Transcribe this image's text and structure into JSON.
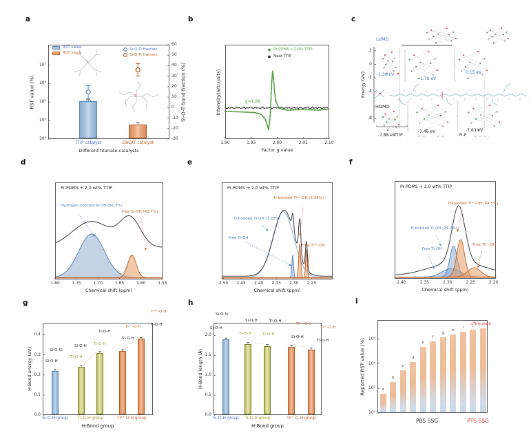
{
  "colors": {
    "blue_fill": "#aac7e2",
    "blue_edge": "#5b87ad",
    "orange_fill": "#eda97f",
    "orange_edge": "#b35c24",
    "olive_fill": "#dcdc8e",
    "olive_edge": "#7f7f2d",
    "blue_text": "#4472c4",
    "orange_text": "#c0632a",
    "olive_text": "#9a9a30",
    "label_blue": "#4f81bd",
    "green": "#4e9a3c",
    "red": "#e03030",
    "teal": "#8fb8c6",
    "grad_top": "#f0c2a0",
    "grad_bottom": "#c8d6e6"
  },
  "chart_data": [
    {
      "panel": "a",
      "type": "bar",
      "ylabel_left": "RST value (%)",
      "ylabel_right": "Si-O-Ti bond fraction (%)",
      "xlabel": "Different titanate catalysts",
      "yticks_left": [
        "10³",
        "10⁴",
        "10⁵",
        "10⁶",
        "10⁷"
      ],
      "yticks_left_exp": [
        3,
        4,
        5,
        6,
        7
      ],
      "ylim_left_exp": [
        3,
        8.1
      ],
      "yticks_right": [
        60,
        50,
        40,
        30,
        20,
        10,
        0,
        -10,
        -20,
        -30
      ],
      "ylim_right": [
        -30,
        60
      ],
      "legend": [
        {
          "label": "RST value",
          "marker": "swatch",
          "color": "blue"
        },
        {
          "label": "RST value",
          "marker": "swatch",
          "color": "orange"
        },
        {
          "label": "Si-O-Ti fraction",
          "marker": "circle",
          "color": "blue"
        },
        {
          "label": "Si-O-Ti fraction",
          "marker": "circle",
          "color": "orange"
        }
      ],
      "categories": [
        {
          "label": "TTIP catalyst",
          "color": "blue",
          "rst_value": 110000,
          "fraction": 15
        },
        {
          "label": "DBEAT catalyst",
          "color": "orange",
          "rst_value": 6000,
          "fraction": 36
        }
      ]
    },
    {
      "panel": "b",
      "type": "line",
      "xlabel": "Factor g value",
      "ylabel": "Intensity(arb.units)",
      "xticks": [
        "1.90",
        "1.95",
        "2.00",
        "2.05",
        "2.10"
      ],
      "xlim": [
        1.9,
        2.1
      ],
      "annotation": "g=1.99",
      "series": [
        {
          "name": "Pr-PDMS +2.0% TTIP",
          "color": "green",
          "points": [
            [
              1.9,
              -0.04
            ],
            [
              1.92,
              -0.05
            ],
            [
              1.94,
              -0.06
            ],
            [
              1.955,
              -0.07
            ],
            [
              1.965,
              -0.1
            ],
            [
              1.97,
              -0.13
            ],
            [
              1.976,
              -0.22
            ],
            [
              1.98,
              -0.36
            ],
            [
              1.9835,
              -0.52
            ],
            [
              1.986,
              -0.25
            ],
            [
              1.9875,
              0.1
            ],
            [
              1.989,
              0.62
            ],
            [
              1.991,
              1.0
            ],
            [
              1.9925,
              0.88
            ],
            [
              1.995,
              0.45
            ],
            [
              1.998,
              0.2
            ],
            [
              2.002,
              0.08
            ],
            [
              2.008,
              0.02
            ],
            [
              2.02,
              -0.01
            ],
            [
              2.05,
              0.01
            ],
            [
              2.08,
              -0.01
            ],
            [
              2.1,
              0.02
            ]
          ]
        },
        {
          "name": "Neat TTIP",
          "color": "black",
          "points": [
            [
              1.9,
              0.05
            ],
            [
              2.1,
              0.05
            ]
          ]
        }
      ]
    },
    {
      "panel": "c",
      "type": "energy-diagram",
      "ylabel": "Energy (eV)",
      "yticks": [
        2,
        0,
        -2,
        -4,
        -8
      ],
      "ylim": [
        -8.6,
        2.6
      ],
      "lumo_label": "LUMO",
      "homo_label": "HOMO",
      "levels": [
        {
          "lumo": "-1.36 eV",
          "homo": "-7.88 eV",
          "x_label": "TTIP"
        },
        {
          "lumo": "-1.78 eV",
          "homo": "-7.46 eV",
          "x_label": ""
        },
        {
          "lumo": "0.15 eV",
          "homo": "-7.63 eV",
          "x_label": "Pr-P"
        }
      ]
    },
    {
      "panel": "d",
      "type": "area",
      "title": "Pr-PDMS + 2.0 wt% TTIP",
      "xlabel": "Chemical shift (ppm)",
      "xticks": [
        "1.80",
        "1.75",
        "1.70",
        "1.65",
        "1.60",
        "1.55"
      ],
      "xlim": [
        1.8,
        1.55
      ],
      "components": [
        {
          "name": "hydrogen-bonded-si-oh",
          "color": "blue",
          "fill": true,
          "center": 1.715,
          "width": 0.03,
          "amp": 0.47
        },
        {
          "name": "free-si-oh",
          "color": "orange",
          "fill": true,
          "center": 1.621,
          "width": 0.01,
          "amp": 0.24
        }
      ],
      "envelope": {
        "base": 0.33,
        "humps": [
          {
            "center": 1.715,
            "width": 0.045,
            "amp": 0.28
          },
          {
            "center": 1.625,
            "width": 0.024,
            "amp": 0.3
          }
        ]
      },
      "annotations": [
        {
          "text": "Hydrogen bonded Si-OH (56.3%)",
          "color": "blue",
          "tx": 0.05,
          "ty": 0.23,
          "sx": 0.22,
          "sy": 0.33,
          "ax": 0.37,
          "ay": 0.56
        },
        {
          "text": "Free Si-OH (43.7%)",
          "color": "orange",
          "tx": 0.62,
          "ty": 0.29,
          "sx": 0.8,
          "sy": 0.36,
          "ax": 0.845,
          "ay": 0.7
        }
      ]
    },
    {
      "panel": "e",
      "type": "area",
      "title": "Pr-PDMS + 2.0 wt% TTIP",
      "xlabel": "Chemical shift (ppm)",
      "xticks": [
        "2.50",
        "2.45",
        "2.40",
        "2.35",
        "2.30",
        "2.25"
      ],
      "xlim": [
        2.505,
        2.19
      ],
      "components": [
        {
          "name": "h-bonded-ti-oh-broad",
          "color": "lightblue",
          "fill": false,
          "center": 2.33,
          "width": 0.03,
          "amp": 0.71
        },
        {
          "name": "free-ti-oh",
          "color": "blue",
          "fill": true,
          "center": 2.3035,
          "width": 0.0024,
          "amp": 0.24
        },
        {
          "name": "h-bonded-ti4-oh",
          "color": "orange",
          "fill": true,
          "center": 2.2835,
          "width": 0.0028,
          "amp": 0.36
        },
        {
          "name": "free-ti4-oh",
          "color": "orange",
          "fill": true,
          "center": 2.2645,
          "width": 0.0024,
          "amp": 0.3
        }
      ],
      "envelope": {
        "base": 0.02,
        "humps": [
          {
            "center": 2.328,
            "width": 0.03,
            "amp": 0.71
          },
          {
            "center": 2.303,
            "width": 0.0028,
            "amp": 0.17
          },
          {
            "center": 2.2835,
            "width": 0.0032,
            "amp": 0.38
          },
          {
            "center": 2.2645,
            "width": 0.0028,
            "amp": 0.3
          }
        ]
      },
      "annotations": [
        {
          "text": "H-bonded Ti⁴⁺-OH (3.36%)",
          "color": "orange",
          "tx": 0.47,
          "ty": 0.15,
          "sx": 0.73,
          "sy": 0.26,
          "ax": 0.705,
          "ay": 0.55
        },
        {
          "text": "H-bonded Ti-OH (1.23%)",
          "color": "blue",
          "tx": 0.11,
          "ty": 0.36,
          "sx": 0.36,
          "sy": 0.44,
          "ax": 0.42,
          "ay": 0.5
        },
        {
          "text": "Free Ti-OH",
          "color": "blue",
          "tx": 0.06,
          "ty": 0.56,
          "sx": 0.22,
          "sy": 0.62,
          "ax": 0.63,
          "ay": 0.86
        },
        {
          "text": "Free Ti⁴⁺-OH",
          "color": "orange",
          "tx": 0.72,
          "ty": 0.64,
          "sx": 0.8,
          "sy": 0.72,
          "ax": 0.77,
          "ay": 0.87
        }
      ]
    },
    {
      "panel": "f",
      "type": "area",
      "title": "Pr-PDMS + 2.0 wt% TTIP",
      "xlabel": "Chemical shift (ppm)",
      "xticks": [
        "2.40",
        "2.35",
        "2.30",
        "2.25",
        "2.20"
      ],
      "xlim": [
        2.415,
        2.195
      ],
      "components": [
        {
          "name": "free-ti-oh-base",
          "color": "blue",
          "fill": true,
          "center": 2.292,
          "width": 0.02,
          "amp": 0.09
        },
        {
          "name": "h-bonded-ti-oh",
          "color": "blue",
          "fill": true,
          "center": 2.287,
          "width": 0.008,
          "amp": 0.33
        },
        {
          "name": "h-bonded-ti4-oh",
          "color": "orange",
          "fill": true,
          "center": 2.2715,
          "width": 0.0085,
          "amp": 0.4
        },
        {
          "name": "free-ti4-oh-broad",
          "color": "orange",
          "fill": true,
          "center": 2.242,
          "width": 0.014,
          "amp": 0.1
        }
      ],
      "envelope": {
        "base": 0.015,
        "humps": [
          {
            "center": 2.276,
            "width": 0.014,
            "amp": 0.6
          },
          {
            "center": 2.276,
            "width": 0.06,
            "amp": 0.15
          }
        ]
      },
      "annotations": [
        {
          "text": "H-bonded Ti⁴⁺-OH (64.5%)",
          "color": "orange",
          "tx": 0.53,
          "ty": 0.22,
          "sx": 0.67,
          "sy": 0.3,
          "ax": 0.62,
          "ay": 0.52
        },
        {
          "text": "H-bonded Ti-OH (29.2%)",
          "color": "blue",
          "tx": 0.16,
          "ty": 0.47,
          "sx": 0.41,
          "sy": 0.55,
          "ax": 0.46,
          "ay": 0.67
        },
        {
          "text": "Free Ti-OH",
          "color": "blue",
          "tx": 0.27,
          "ty": 0.68,
          "sx": 0.33,
          "sy": 0.75,
          "ax": 0.39,
          "ay": 0.9
        },
        {
          "text": "Free Ti⁴⁺-OH",
          "color": "orange",
          "tx": 0.77,
          "ty": 0.64,
          "sx": 0.86,
          "sy": 0.72,
          "ax": 0.82,
          "ay": 0.89
        }
      ]
    },
    {
      "panel": "g",
      "type": "bar",
      "ylabel": "H-Bond energy (eV)",
      "xlabel": "H-Bond group",
      "yticks": [
        "0.0",
        "0.1",
        "0.2",
        "0.3",
        "0.4"
      ],
      "ylim": [
        0,
        0.46
      ],
      "groups": [
        {
          "label": "Si-O-H group",
          "color": "blue"
        },
        {
          "label": "Ti-O-H group",
          "color": "olive"
        },
        {
          "label": "Ti⁴⁺-O-H group",
          "color": "orange"
        }
      ],
      "bars": [
        {
          "value": 0.22,
          "color": "blue",
          "labels": [
            {
              "text": "Si-O-Si",
              "color": "black"
            },
            {
              "text": "Si-O-H",
              "color": "black"
            }
          ]
        },
        {
          "value": 0.24,
          "color": "olive",
          "labels": [
            {
              "text": "Si-O-H",
              "color": "black"
            },
            {
              "text": "Ti-O-H",
              "color": "olive"
            }
          ]
        },
        {
          "value": 0.31,
          "color": "olive",
          "labels": [
            {
              "text": "Ti-O-H",
              "color": "black"
            },
            {
              "text": "Ti-O-H",
              "color": "olive"
            }
          ]
        },
        {
          "value": 0.32,
          "color": "orange",
          "labels": [
            {
              "text": "Ti⁴⁺-O-H",
              "color": "orange"
            },
            {
              "text": "Si-O-H",
              "color": "black"
            }
          ]
        },
        {
          "value": 0.38,
          "color": "orange",
          "labels": [
            {
              "text": "Ti⁴⁺-O-H",
              "color": "orange"
            },
            {
              "text": "Ti-O-H",
              "color": "black"
            }
          ]
        }
      ]
    },
    {
      "panel": "h",
      "type": "bar",
      "ylabel": "H-Bond length (Å)",
      "xlabel": "H-Bond group",
      "yticks": [
        "0.0",
        "0.5",
        "1.0",
        "1.5",
        "2.0"
      ],
      "ylim": [
        0,
        2.32
      ],
      "groups": [
        {
          "label": "Si-O-H group",
          "color": "blue"
        },
        {
          "label": "Ti-O-H group",
          "color": "olive"
        },
        {
          "label": "Ti⁴⁺-O-H group",
          "color": "orange"
        }
      ],
      "bars": [
        {
          "value": 1.9,
          "color": "blue",
          "labels": [
            {
              "text": "Si-O-Si",
              "color": "black"
            },
            {
              "text": "Si-O-H",
              "color": "black"
            }
          ]
        },
        {
          "value": 1.79,
          "color": "olive",
          "labels": [
            {
              "text": "Si-O-H",
              "color": "black"
            },
            {
              "text": "Ti-O-H",
              "color": "olive"
            }
          ]
        },
        {
          "value": 1.74,
          "color": "olive",
          "labels": [
            {
              "text": "Ti-O-H",
              "color": "black"
            },
            {
              "text": "Ti-O-H",
              "color": "olive"
            }
          ]
        },
        {
          "value": 1.72,
          "color": "orange",
          "labels": [
            {
              "text": "Ti⁴⁺-O-H",
              "color": "orange"
            },
            {
              "text": "Si-O-H",
              "color": "black"
            }
          ]
        },
        {
          "value": 1.65,
          "color": "orange",
          "labels": [
            {
              "text": "Ti⁴⁺-O-H",
              "color": "orange"
            },
            {
              "text": "Ti-O-H",
              "color": "black"
            }
          ]
        }
      ]
    },
    {
      "panel": "i",
      "type": "bar-log",
      "ylabel": "Reported RST value (%)",
      "yticks": [
        "10²",
        "10³",
        "10⁴",
        "10⁵"
      ],
      "yticks_exp": [
        2,
        3,
        4,
        5
      ],
      "ylim_exp": [
        2,
        5.78
      ],
      "bars": [
        {
          "label": "a",
          "value": 600
        },
        {
          "label": "b",
          "value": 1800
        },
        {
          "label": "c",
          "value": 5500
        },
        {
          "label": "d",
          "value": 12000
        },
        {
          "label": "e",
          "value": 50000
        },
        {
          "label": "f",
          "value": 80000
        },
        {
          "label": "g",
          "value": 120000
        },
        {
          "label": "h",
          "value": 160000
        },
        {
          "label": "i",
          "value": 200000
        },
        {
          "label": "j",
          "value": 240000
        },
        {
          "label": "☆This work",
          "value": 280000,
          "highlight": true
        }
      ],
      "x_groups": [
        {
          "label": "PBS  SSG",
          "color": "black"
        },
        {
          "label": "PTS SSG",
          "color": "red"
        }
      ]
    }
  ]
}
